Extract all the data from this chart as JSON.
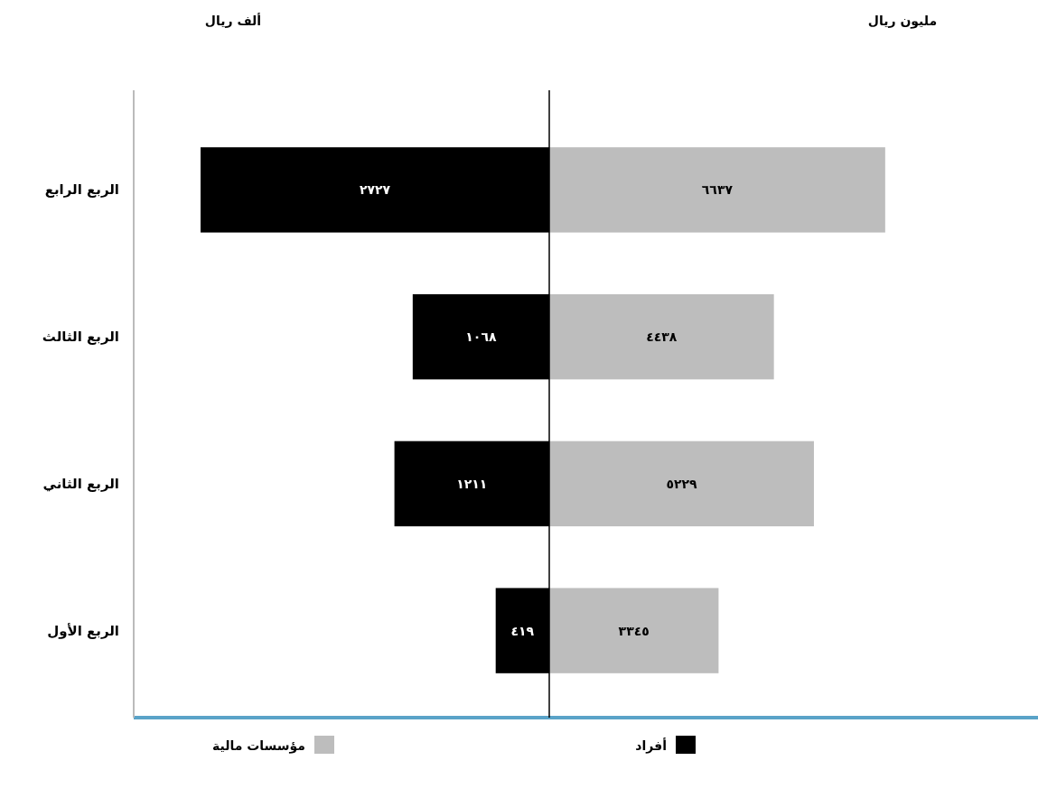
{
  "chart_data": [
    {
      "type": "bar",
      "orientation": "horizontal",
      "xlabel": "ألف ريال",
      "categories": [
        "الربع الرابع",
        "الربع الثالث",
        "الربع الثاني",
        "الربع الأول"
      ],
      "series": [
        {
          "name": "أفراد",
          "color": "#000000",
          "values": [
            2727,
            1068,
            1211,
            419
          ],
          "value_labels": [
            "٢٧٢٧",
            "١٠٦٨",
            "١٢١١",
            "٤١٩"
          ]
        }
      ],
      "xlim": [
        3250,
        0
      ],
      "tick_labels": "y",
      "legend": "bottom"
    },
    {
      "type": "bar",
      "orientation": "horizontal",
      "xlabel": "مليون ريال",
      "categories": [
        null,
        null,
        null,
        null
      ],
      "series": [
        {
          "name": "مؤسسات مالية",
          "color": "#bdbdbd",
          "values": [
            6637,
            4438,
            5229,
            3345
          ],
          "value_labels": [
            "٦٦٣٧",
            "٤٤٣٨",
            "٥٢٢٩",
            "٣٣٤٥"
          ]
        }
      ],
      "tick_labels": false,
      "legend": "bottom"
    }
  ]
}
